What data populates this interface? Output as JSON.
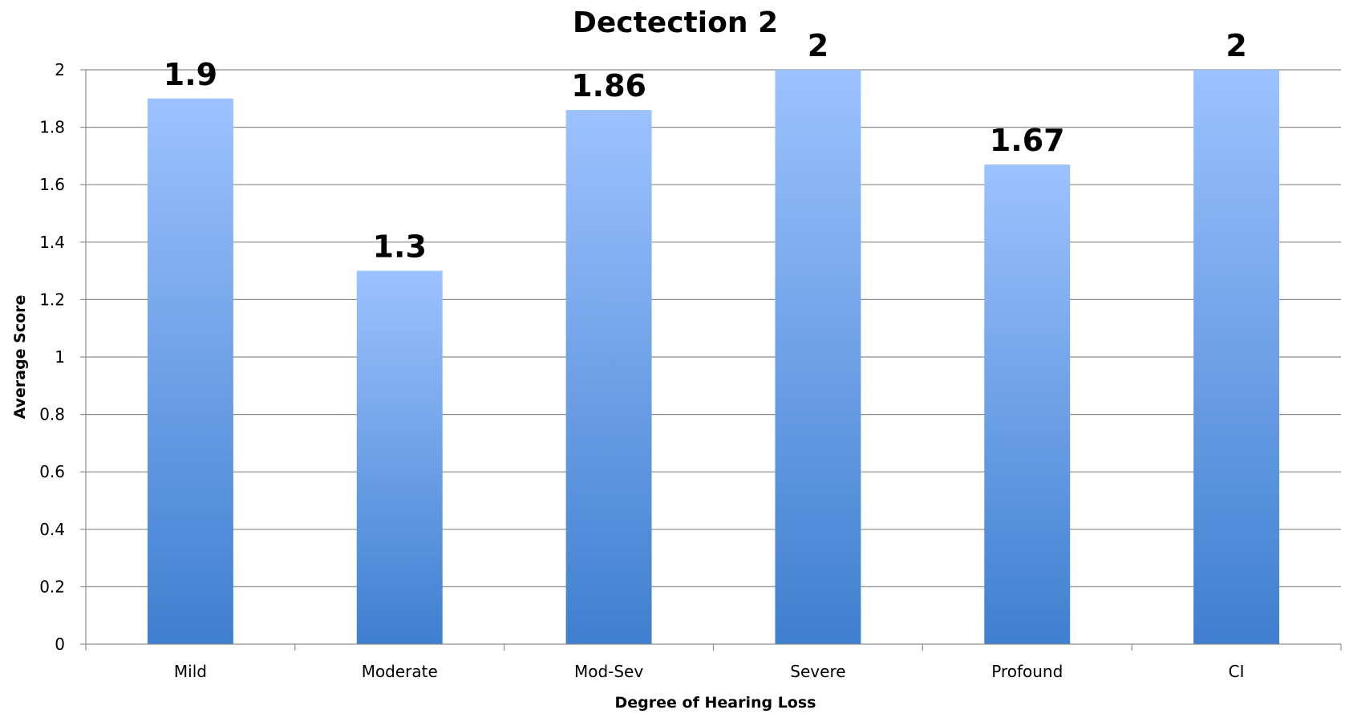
{
  "chart_data": {
    "type": "bar",
    "title": "Dectection 2",
    "xlabel": "Degree of Hearing Loss",
    "ylabel": "Average Score",
    "categories": [
      "Mild",
      "Moderate",
      "Mod-Sev",
      "Severe",
      "Profound",
      "CI"
    ],
    "values": [
      1.9,
      1.3,
      1.86,
      2,
      1.67,
      2
    ],
    "data_labels": [
      "1.9",
      "1.3",
      "1.86",
      "2",
      "1.67",
      "2"
    ],
    "ylim": [
      0,
      2
    ],
    "y_ticks": [
      "0",
      "0.2",
      "0.4",
      "0.6",
      "0.8",
      "1",
      "1.2",
      "1.4",
      "1.6",
      "1.8",
      "2"
    ],
    "grid": true,
    "legend": "none",
    "colors": {
      "bar_top": "#9cc2ff",
      "bar_bottom": "#3f7fcf",
      "gridline": "#8c8c8c"
    }
  }
}
